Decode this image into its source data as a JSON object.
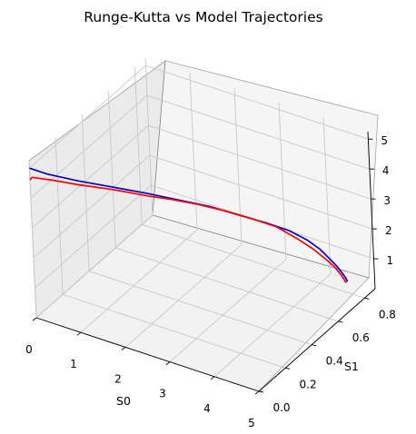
{
  "chart_data": {
    "type": "line",
    "title": "Runge-Kutta vs Model Trajectories",
    "xlabel": "S0",
    "ylabel": "S1",
    "zlabel": "",
    "xlim": [
      0,
      5
    ],
    "ylim": [
      0,
      0.88
    ],
    "zlim": [
      0,
      5
    ],
    "x_ticks": [
      "0",
      "1",
      "2",
      "3",
      "4",
      "5"
    ],
    "x_tick_values": [
      0,
      1,
      2,
      3,
      4,
      5
    ],
    "y_ticks": [
      "0.0",
      "0.2",
      "0.4",
      "0.6",
      "0.8"
    ],
    "y_tick_values": [
      0.0,
      0.2,
      0.4,
      0.6,
      0.8
    ],
    "z_ticks": [
      "1",
      "2",
      "3",
      "4",
      "5"
    ],
    "z_tick_values": [
      1,
      2,
      3,
      4,
      5
    ],
    "grid": true,
    "series": [
      {
        "color": "#0000cc",
        "points": [
          [
            0.0,
            0.0,
            5.0
          ],
          [
            0.4,
            0.0,
            5.0
          ],
          [
            1.0,
            0.03,
            4.95
          ],
          [
            1.6,
            0.08,
            4.85
          ],
          [
            2.2,
            0.14,
            4.7
          ],
          [
            2.7,
            0.2,
            4.5
          ],
          [
            3.2,
            0.28,
            4.2
          ],
          [
            3.6,
            0.36,
            3.8
          ],
          [
            3.9,
            0.46,
            3.3
          ],
          [
            4.1,
            0.56,
            2.75
          ],
          [
            4.25,
            0.64,
            2.2
          ],
          [
            4.35,
            0.7,
            1.7
          ],
          [
            4.4,
            0.74,
            1.3
          ],
          [
            4.45,
            0.78,
            0.9
          ],
          [
            4.48,
            0.81,
            0.55
          ],
          [
            4.5,
            0.83,
            0.3
          ],
          [
            4.5,
            0.84,
            0.15
          ]
        ]
      },
      {
        "color": "#ff0000",
        "points": [
          [
            0.0,
            0.0,
            4.6
          ],
          [
            0.05,
            0.0,
            4.72
          ],
          [
            0.5,
            0.01,
            4.8
          ],
          [
            1.0,
            0.04,
            4.78
          ],
          [
            1.6,
            0.09,
            4.72
          ],
          [
            2.2,
            0.15,
            4.57
          ],
          [
            2.6,
            0.2,
            4.45
          ],
          [
            3.0,
            0.26,
            4.25
          ],
          [
            3.4,
            0.33,
            3.95
          ],
          [
            3.7,
            0.42,
            3.5
          ],
          [
            3.95,
            0.52,
            2.95
          ],
          [
            4.15,
            0.6,
            2.35
          ],
          [
            4.28,
            0.67,
            1.8
          ],
          [
            4.37,
            0.72,
            1.35
          ],
          [
            4.43,
            0.77,
            0.9
          ],
          [
            4.47,
            0.8,
            0.55
          ],
          [
            4.49,
            0.82,
            0.3
          ],
          [
            4.5,
            0.83,
            0.15
          ]
        ]
      }
    ]
  }
}
